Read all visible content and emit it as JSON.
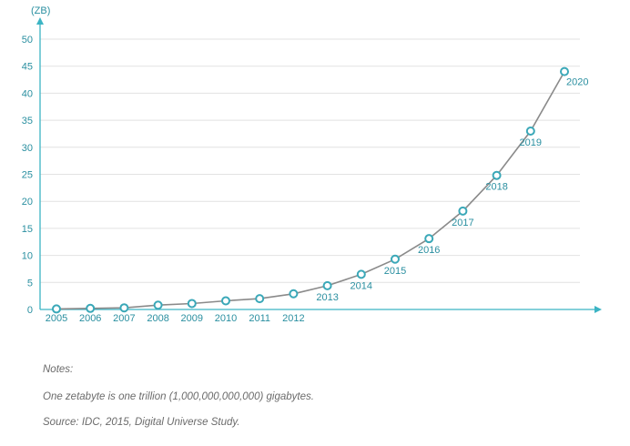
{
  "chart_data": {
    "type": "line",
    "y_unit_label": "(ZB)",
    "ylim": [
      0,
      50
    ],
    "yticks": [
      0,
      5,
      10,
      15,
      20,
      25,
      30,
      35,
      40,
      45,
      50
    ],
    "grid": true,
    "series": [
      {
        "points": [
          {
            "x": "2005",
            "y": 0.1
          },
          {
            "x": "2006",
            "y": 0.2
          },
          {
            "x": "2007",
            "y": 0.3
          },
          {
            "x": "2008",
            "y": 0.8
          },
          {
            "x": "2009",
            "y": 1.1
          },
          {
            "x": "2010",
            "y": 1.6
          },
          {
            "x": "2011",
            "y": 2.0
          },
          {
            "x": "2012",
            "y": 2.9
          },
          {
            "x": "2013",
            "y": 4.4
          },
          {
            "x": "2014",
            "y": 6.5
          },
          {
            "x": "2015",
            "y": 9.3
          },
          {
            "x": "2016",
            "y": 13.1
          },
          {
            "x": "2017",
            "y": 18.2
          },
          {
            "x": "2018",
            "y": 24.8
          },
          {
            "x": "2019",
            "y": 33.0
          },
          {
            "x": "2020",
            "y": 44.0
          }
        ]
      }
    ],
    "colors": {
      "axis": "#3bb4c4",
      "grid": "#e2e2e2",
      "line": "#8a8a8a",
      "marker_stroke": "#3aa8b8",
      "label": "#2a8fa0"
    }
  },
  "notes": {
    "title": "Notes:",
    "line1": "One zetabyte is one trillion (1,000,000,000,000) gigabytes.",
    "line2": "Source: IDC, 2015, Digital Universe Study."
  }
}
